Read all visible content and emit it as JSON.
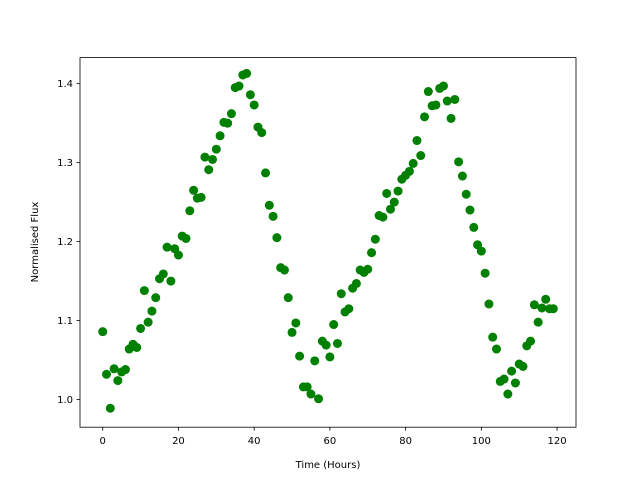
{
  "chart_data": {
    "type": "scatter",
    "title": "",
    "xlabel": "Time (Hours)",
    "ylabel": "Normalised Flux",
    "xlim": [
      -6,
      125
    ],
    "ylim": [
      0.965,
      1.433
    ],
    "xticks": [
      0,
      20,
      40,
      60,
      80,
      100,
      120
    ],
    "yticks": [
      1.0,
      1.1,
      1.2,
      1.3,
      1.4
    ],
    "xtick_labels": [
      "0",
      "20",
      "40",
      "60",
      "80",
      "100",
      "120"
    ],
    "ytick_labels": [
      "1.0",
      "1.1",
      "1.2",
      "1.3",
      "1.4"
    ],
    "grid": false,
    "marker_color": "#008000",
    "series": [
      {
        "x": [
          0,
          1,
          2,
          3,
          4,
          5,
          6,
          7,
          8,
          9,
          10,
          11,
          12,
          13,
          14,
          15,
          16,
          17,
          18,
          19,
          20,
          21,
          22,
          23,
          24,
          25,
          26,
          27,
          28,
          29,
          30,
          31,
          32,
          33,
          34,
          35,
          36,
          37,
          38,
          39,
          40,
          41,
          42,
          43,
          44,
          45,
          46,
          47,
          48,
          49,
          50,
          51,
          52,
          53,
          54,
          55,
          56,
          57,
          58,
          59,
          60,
          61,
          62,
          63,
          64,
          65,
          66,
          67,
          68,
          69,
          70,
          71,
          72,
          73,
          74,
          75,
          76,
          77,
          78,
          79,
          80,
          81,
          82,
          83,
          84,
          85,
          86,
          87,
          88,
          89,
          90,
          91,
          92,
          93,
          94,
          95,
          96,
          97,
          98,
          99,
          100,
          101,
          102,
          103,
          104,
          105,
          106,
          107,
          108,
          109,
          110,
          111,
          112,
          113,
          114,
          115,
          116,
          117,
          118,
          119
        ],
        "y": [
          1.086,
          1.032,
          0.989,
          1.039,
          1.024,
          1.035,
          1.038,
          1.064,
          1.07,
          1.066,
          1.09,
          1.138,
          1.098,
          1.112,
          1.129,
          1.153,
          1.159,
          1.193,
          1.15,
          1.191,
          1.183,
          1.207,
          1.204,
          1.239,
          1.265,
          1.255,
          1.256,
          1.307,
          1.291,
          1.304,
          1.317,
          1.334,
          1.351,
          1.35,
          1.362,
          1.395,
          1.397,
          1.411,
          1.413,
          1.386,
          1.373,
          1.345,
          1.338,
          1.287,
          1.246,
          1.232,
          1.205,
          1.167,
          1.164,
          1.129,
          1.085,
          1.097,
          1.055,
          1.016,
          1.016,
          1.007,
          1.049,
          1.001,
          1.074,
          1.069,
          1.054,
          1.095,
          1.071,
          1.134,
          1.111,
          1.115,
          1.141,
          1.147,
          1.164,
          1.161,
          1.165,
          1.186,
          1.203,
          1.233,
          1.231,
          1.261,
          1.241,
          1.25,
          1.264,
          1.279,
          1.284,
          1.289,
          1.299,
          1.328,
          1.309,
          1.358,
          1.39,
          1.372,
          1.373,
          1.394,
          1.397,
          1.378,
          1.356,
          1.38,
          1.301,
          1.283,
          1.26,
          1.24,
          1.218,
          1.196,
          1.188,
          1.16,
          1.121,
          1.079,
          1.064,
          1.023,
          1.026,
          1.007,
          1.036,
          1.021,
          1.045,
          1.042,
          1.068,
          1.074,
          1.12,
          1.098,
          1.116,
          1.127,
          1.115,
          1.115
        ]
      }
    ]
  }
}
